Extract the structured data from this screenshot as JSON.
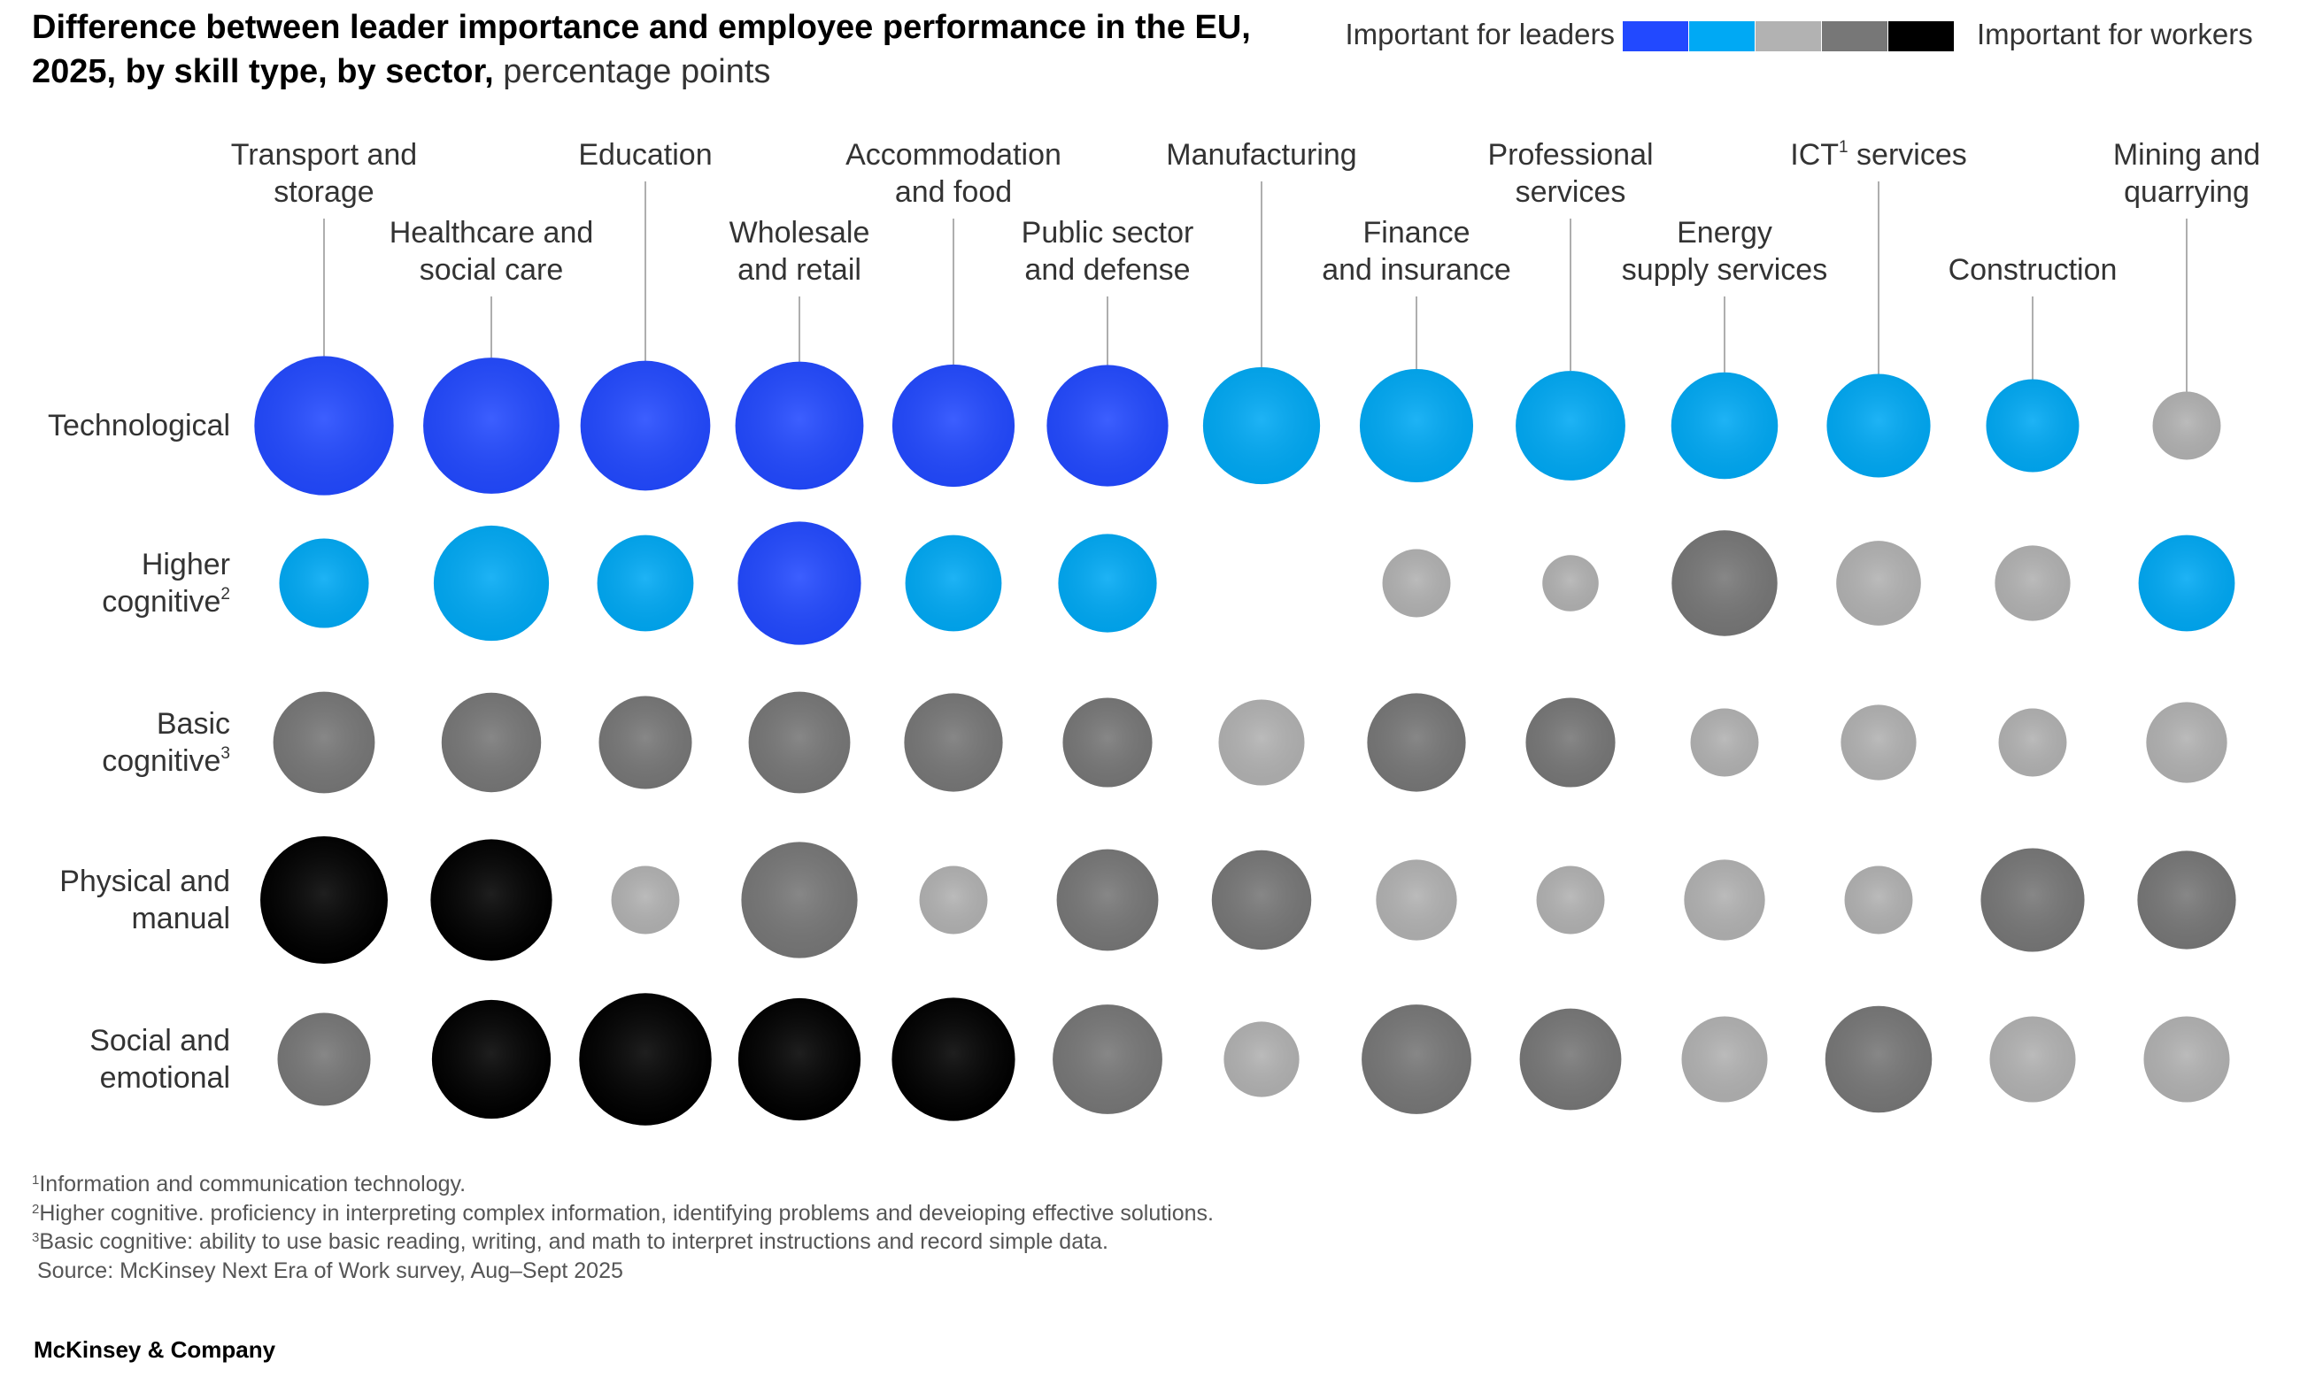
{
  "title": {
    "main": "Difference between leader importance and employee performance in the EU, 2025, by skill type, by sector,",
    "unit": "percentage points"
  },
  "legend": {
    "left_label": "Important for leaders",
    "right_label": "Important for workers",
    "colors": [
      "#2249ff",
      "#00a9f4",
      "#b2b2b2",
      "#777777",
      "#000000"
    ]
  },
  "footnotes": {
    "note1_marker": "1",
    "note1": "Information and communication technology.",
    "note2_marker": "2",
    "note2": "Higher cognitive. proficiency in interpreting complex information, identifying problems and deveioping effective solutions.",
    "note3_marker": "3",
    "note3": "Basic cognitive: ability to use basic reading, writing, and math to interpret instructions and record simple data.",
    "source": "Source: McKinsey Next Era of Work survey, Aug–Sept 2025"
  },
  "brand": "McKinsey & Company",
  "chart_data": {
    "type": "bubble-matrix",
    "size_encoding": "relative magnitude of difference (estimated, 0–100 scale)",
    "color_scale": {
      "leaders_strong": "#2249ff",
      "leaders": "#00a9f4",
      "neutral": "#b2b2b2",
      "workers": "#777777",
      "workers_strong": "#000000"
    },
    "columns": [
      {
        "label": "Transport and\nstorage"
      },
      {
        "label": "Healthcare and\nsocial care"
      },
      {
        "label": "Education"
      },
      {
        "label": "Wholesale\nand retail"
      },
      {
        "label": "Accommodation\nand food"
      },
      {
        "label": "Public sector\nand defense"
      },
      {
        "label": "Manufacturing"
      },
      {
        "label": "Finance\nand insurance"
      },
      {
        "label": "Professional\nservices"
      },
      {
        "label": "Energy\nsupply services"
      },
      {
        "label": "ICT services",
        "marker": "1"
      },
      {
        "label": "Construction"
      },
      {
        "label": "Mining and\nquarrying"
      }
    ],
    "rows": [
      {
        "label": "Technological",
        "marker": ""
      },
      {
        "label": "Higher\ncognitive",
        "marker": "2"
      },
      {
        "label": "Basic\ncognitive",
        "marker": "3"
      },
      {
        "label": "Physical and\nmanual",
        "marker": ""
      },
      {
        "label": "Social and\nemotional",
        "marker": ""
      }
    ],
    "bubbles": [
      [
        {
          "size": 92,
          "category": "leaders_strong"
        },
        {
          "size": 88,
          "category": "leaders_strong"
        },
        {
          "size": 80,
          "category": "leaders_strong"
        },
        {
          "size": 78,
          "category": "leaders_strong"
        },
        {
          "size": 71,
          "category": "leaders_strong"
        },
        {
          "size": 70,
          "category": "leaders_strong"
        },
        {
          "size": 65,
          "category": "leaders"
        },
        {
          "size": 61,
          "category": "leaders"
        },
        {
          "size": 57,
          "category": "leaders"
        },
        {
          "size": 54,
          "category": "leaders"
        },
        {
          "size": 51,
          "category": "leaders"
        },
        {
          "size": 41,
          "category": "leaders"
        },
        {
          "size": 22,
          "category": "neutral"
        }
      ],
      [
        {
          "size": 38,
          "category": "leaders"
        },
        {
          "size": 63,
          "category": "leaders"
        },
        {
          "size": 44,
          "category": "leaders"
        },
        {
          "size": 72,
          "category": "leaders_strong"
        },
        {
          "size": 44,
          "category": "leaders"
        },
        {
          "size": 46,
          "category": "leaders"
        },
        {
          "size": 0,
          "category": "neutral"
        },
        {
          "size": 22,
          "category": "neutral"
        },
        {
          "size": 15,
          "category": "neutral"
        },
        {
          "size": 53,
          "category": "workers"
        },
        {
          "size": 34,
          "category": "neutral"
        },
        {
          "size": 27,
          "category": "neutral"
        },
        {
          "size": 44,
          "category": "leaders"
        }
      ],
      [
        {
          "size": 49,
          "category": "workers"
        },
        {
          "size": 47,
          "category": "workers"
        },
        {
          "size": 41,
          "category": "workers"
        },
        {
          "size": 49,
          "category": "workers"
        },
        {
          "size": 46,
          "category": "workers"
        },
        {
          "size": 38,
          "category": "workers"
        },
        {
          "size": 35,
          "category": "neutral"
        },
        {
          "size": 46,
          "category": "workers"
        },
        {
          "size": 38,
          "category": "workers"
        },
        {
          "size": 22,
          "category": "neutral"
        },
        {
          "size": 27,
          "category": "neutral"
        },
        {
          "size": 22,
          "category": "neutral"
        },
        {
          "size": 31,
          "category": "neutral"
        }
      ],
      [
        {
          "size": 77,
          "category": "workers_strong"
        },
        {
          "size": 70,
          "category": "workers_strong"
        },
        {
          "size": 22,
          "category": "neutral"
        },
        {
          "size": 64,
          "category": "workers"
        },
        {
          "size": 22,
          "category": "neutral"
        },
        {
          "size": 49,
          "category": "workers"
        },
        {
          "size": 47,
          "category": "workers"
        },
        {
          "size": 31,
          "category": "neutral"
        },
        {
          "size": 22,
          "category": "neutral"
        },
        {
          "size": 31,
          "category": "neutral"
        },
        {
          "size": 22,
          "category": "neutral"
        },
        {
          "size": 51,
          "category": "workers"
        },
        {
          "size": 46,
          "category": "workers"
        }
      ],
      [
        {
          "size": 41,
          "category": "workers"
        },
        {
          "size": 67,
          "category": "workers_strong"
        },
        {
          "size": 83,
          "category": "workers_strong"
        },
        {
          "size": 71,
          "category": "workers_strong"
        },
        {
          "size": 72,
          "category": "workers_strong"
        },
        {
          "size": 57,
          "category": "workers"
        },
        {
          "size": 27,
          "category": "neutral"
        },
        {
          "size": 57,
          "category": "workers"
        },
        {
          "size": 49,
          "category": "workers"
        },
        {
          "size": 35,
          "category": "neutral"
        },
        {
          "size": 54,
          "category": "workers"
        },
        {
          "size": 35,
          "category": "neutral"
        },
        {
          "size": 35,
          "category": "neutral"
        }
      ]
    ]
  }
}
